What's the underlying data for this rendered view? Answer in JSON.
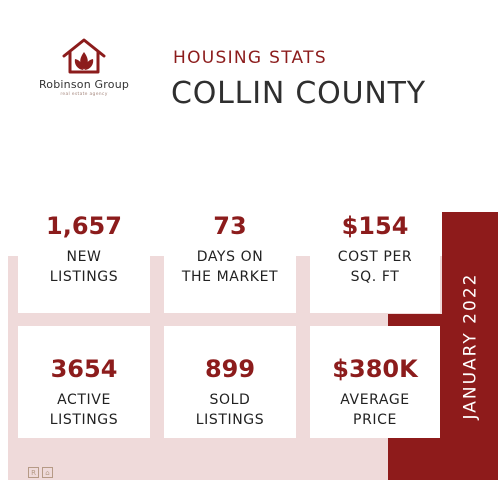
{
  "logo": {
    "icon": "house-leaf-icon",
    "brand": "Robinson Group",
    "tagline": "real estate agency",
    "color": "#8c1c1c"
  },
  "header": {
    "subtitle": "HOUSING STATS",
    "title": "COLLIN COUNTY"
  },
  "period": "JANUARY 2022",
  "stats": [
    {
      "value": "1,657",
      "label_line1": "NEW",
      "label_line2": "LISTINGS"
    },
    {
      "value": "73",
      "label_line1": "DAYS ON",
      "label_line2": "THE MARKET"
    },
    {
      "value": "$154",
      "label_line1": "COST PER",
      "label_line2": "SQ. FT"
    },
    {
      "value": "3654",
      "label_line1": "ACTIVE",
      "label_line2": "LISTINGS"
    },
    {
      "value": "899",
      "label_line1": "SOLD",
      "label_line2": "LISTINGS"
    },
    {
      "value": "$380K",
      "label_line1": "AVERAGE",
      "label_line2": "PRICE"
    }
  ],
  "footer_icons": [
    "realtor-icon",
    "equal-housing-icon"
  ],
  "colors": {
    "accent": "#8c1c1c",
    "band": "#efdada",
    "text": "#2f2f2f"
  }
}
